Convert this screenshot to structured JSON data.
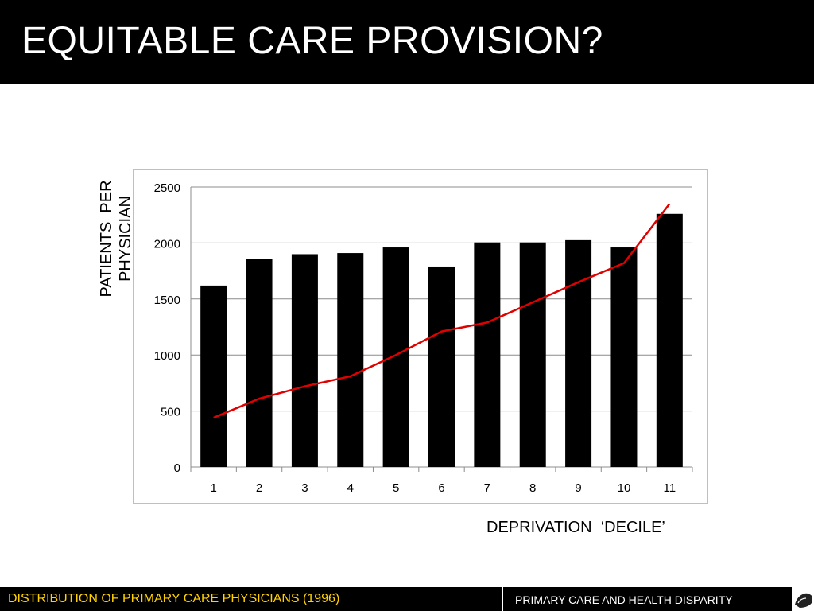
{
  "slide": {
    "title": "EQUITABLE CARE PROVISION?",
    "footer_left": "DISTRIBUTION OF PRIMARY CARE PHYSICIANS (1996)",
    "footer_right": "PRIMARY CARE AND HEALTH DISPARITY",
    "colors": {
      "title_bg": "#000000",
      "footer_left_text": "#ffd200",
      "bars": "#000000",
      "line": "#e00000"
    },
    "logo_icon": "globe-logo-icon"
  },
  "chart_data": {
    "type": "bar",
    "title": "",
    "xlabel": "DEPRIVATION  ‘DECILE’",
    "ylabel": "PATIENTS  PER\nPHYSICIAN",
    "categories": [
      "1",
      "2",
      "3",
      "4",
      "5",
      "6",
      "7",
      "8",
      "9",
      "10",
      "11"
    ],
    "series": [
      {
        "type": "bar",
        "values": [
          1620,
          1855,
          1900,
          1910,
          1960,
          1790,
          2005,
          2005,
          2025,
          1960,
          2260
        ]
      },
      {
        "type": "line",
        "values": [
          440,
          610,
          720,
          810,
          1000,
          1210,
          1290,
          1470,
          1650,
          1820,
          2350
        ]
      }
    ],
    "ylim": [
      0,
      2500
    ],
    "yticks": [
      "0",
      "500",
      "1000",
      "1500",
      "2000",
      "2500"
    ],
    "grid": true,
    "legend": "none"
  }
}
